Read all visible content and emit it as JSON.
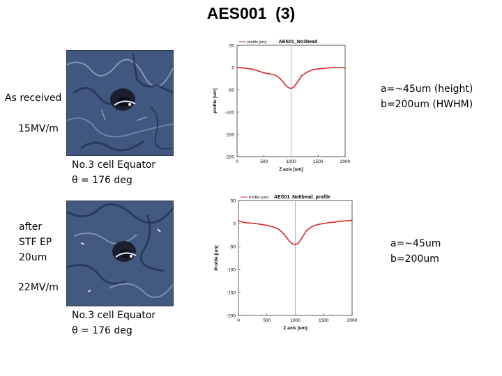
{
  "page_title": "AES001  (3)",
  "top": {
    "condition_label": "As received",
    "field_label": "15MV/m",
    "caption_line1": "No.3 cell Equator",
    "caption_line2": "θ = 176 deg",
    "result_line1": "a=~45um (height)",
    "result_line2": "b=200um (HWHM)"
  },
  "bottom": {
    "condition_line1": "after",
    "condition_line2": "STF EP",
    "condition_line3": "20um",
    "field_label": "22MV/m",
    "caption_line1": "No.3 cell Equator",
    "caption_line2": "θ = 176 deg",
    "result_line1": "a=~45um",
    "result_line2": "b=200um"
  },
  "colors": {
    "profile_line": "#d42a2a",
    "marker_line": "#8fa0c8",
    "photo_base": "#41577f"
  },
  "chart_data": [
    {
      "type": "line",
      "title": "AES01_No3bead",
      "legend": "profile [um]",
      "xlabel": "Z axis [um]",
      "ylabel": "profile [um]",
      "xlim": [
        0,
        2000
      ],
      "ylim": [
        -200,
        50
      ],
      "xticks": [
        0,
        500,
        1000,
        1500,
        2000
      ],
      "yticks": [
        50,
        0,
        -50,
        -100,
        -150,
        -200
      ],
      "marker_x": 1000,
      "grid": false,
      "series": [
        {
          "x": [
            0,
            100,
            200,
            300,
            400,
            500,
            600,
            700,
            750,
            800,
            850,
            900,
            950,
            1000,
            1050,
            1100,
            1150,
            1200,
            1300,
            1400,
            1500,
            1600,
            1700,
            1800,
            1900,
            2000
          ],
          "y": [
            0,
            -1,
            -2,
            -4,
            -8,
            -12,
            -14,
            -17,
            -20,
            -25,
            -32,
            -40,
            -45,
            -47,
            -44,
            -36,
            -27,
            -18,
            -10,
            -5,
            -3,
            -2,
            -1,
            0,
            0,
            -1
          ]
        }
      ]
    },
    {
      "type": "line",
      "title": "AES01_No6bead_profile",
      "legend": "Profile [um]",
      "xlabel": "Z axis [um]",
      "ylabel": "Profile [um]",
      "xlim": [
        0,
        2000
      ],
      "ylim": [
        -200,
        50
      ],
      "xticks": [
        0,
        500,
        1000,
        1500,
        2000
      ],
      "yticks": [
        50,
        0,
        -50,
        -100,
        -150,
        -200
      ],
      "marker_x": 1000,
      "grid": false,
      "series": [
        {
          "x": [
            0,
            100,
            200,
            300,
            400,
            500,
            600,
            700,
            750,
            800,
            850,
            900,
            950,
            1000,
            1050,
            1100,
            1150,
            1200,
            1300,
            1400,
            1500,
            1600,
            1700,
            1800,
            1900,
            2000
          ],
          "y": [
            6,
            2,
            1,
            0,
            -2,
            -4,
            -7,
            -12,
            -17,
            -23,
            -31,
            -39,
            -44,
            -46,
            -43,
            -35,
            -25,
            -15,
            -6,
            -2,
            0,
            2,
            3,
            5,
            6,
            7
          ]
        }
      ]
    }
  ]
}
